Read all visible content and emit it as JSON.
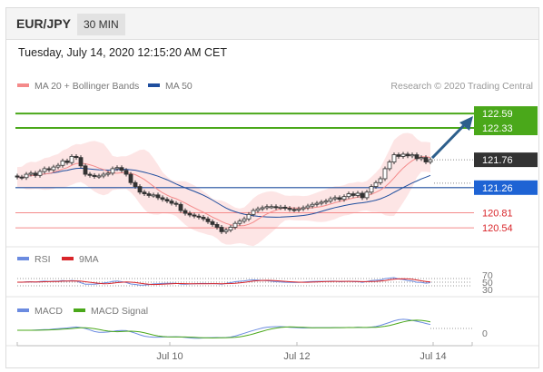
{
  "header": {
    "pair": "EUR/JPY",
    "timeframe": "30 MIN"
  },
  "date_line": "Tuesday, July 14, 2020 12:15:20 AM CET",
  "credit": "Research © 2020 Trading Central",
  "colors": {
    "bollinger": "#f48a8a",
    "ma50": "#1f4e9e",
    "resistance": "#4aa81a",
    "support_red": "#f48a8a",
    "arrow": "#2d5f8c",
    "rsi": "#6b8be0",
    "rsi_ma": "#d9252a",
    "macd": "#6b8be0",
    "macd_signal": "#4aa81a",
    "up_candle": "#ffffff",
    "down_candle": "#333333"
  },
  "chart_data": {
    "type": "candlestick",
    "symbol": "EUR/JPY",
    "timeframe": "30 MIN",
    "x_ticks": [
      "Jul 10",
      "Jul 12",
      "Jul 14"
    ],
    "ylim": [
      120.2,
      122.9
    ],
    "legend": [
      "MA 20 + Bollinger Bands",
      "MA 50"
    ],
    "close_series": [
      121.45,
      121.44,
      121.5,
      121.52,
      121.48,
      121.55,
      121.6,
      121.58,
      121.63,
      121.66,
      121.74,
      121.71,
      121.82,
      121.8,
      121.65,
      121.5,
      121.48,
      121.46,
      121.47,
      121.5,
      121.52,
      121.6,
      121.62,
      121.57,
      121.5,
      121.35,
      121.28,
      121.18,
      121.15,
      121.12,
      121.13,
      121.08,
      121.05,
      121.02,
      120.98,
      120.96,
      120.85,
      120.8,
      120.77,
      120.75,
      120.73,
      120.7,
      120.65,
      120.6,
      120.55,
      120.47,
      120.5,
      120.55,
      120.62,
      120.66,
      120.7,
      120.78,
      120.85,
      120.88,
      120.9,
      120.92,
      120.92,
      120.9,
      120.91,
      120.89,
      120.87,
      120.86,
      120.88,
      120.9,
      120.93,
      120.96,
      120.98,
      121.0,
      121.02,
      121.06,
      121.08,
      121.05,
      121.1,
      121.15,
      121.12,
      121.16,
      121.08,
      121.18,
      121.28,
      121.35,
      121.42,
      121.6,
      121.72,
      121.85,
      121.82,
      121.86,
      121.83,
      121.85,
      121.78,
      121.8,
      121.72,
      121.76
    ],
    "levels": [
      {
        "value": 122.59,
        "label": "122.59",
        "kind": "resistance"
      },
      {
        "value": 122.33,
        "label": "122.33",
        "kind": "resistance"
      },
      {
        "value": 121.76,
        "label": "121.76",
        "kind": "last"
      },
      {
        "value": 121.26,
        "label": "121.26",
        "kind": "pivot"
      },
      {
        "value": 120.81,
        "label": "120.81",
        "kind": "support"
      },
      {
        "value": 120.54,
        "label": "120.54",
        "kind": "support"
      }
    ],
    "rsi": {
      "legend": [
        "RSI",
        "9MA"
      ],
      "levels": [
        "70",
        "50",
        "30"
      ]
    },
    "macd": {
      "legend": [
        "MACD",
        "MACD Signal"
      ],
      "levels": [
        "0"
      ]
    }
  }
}
